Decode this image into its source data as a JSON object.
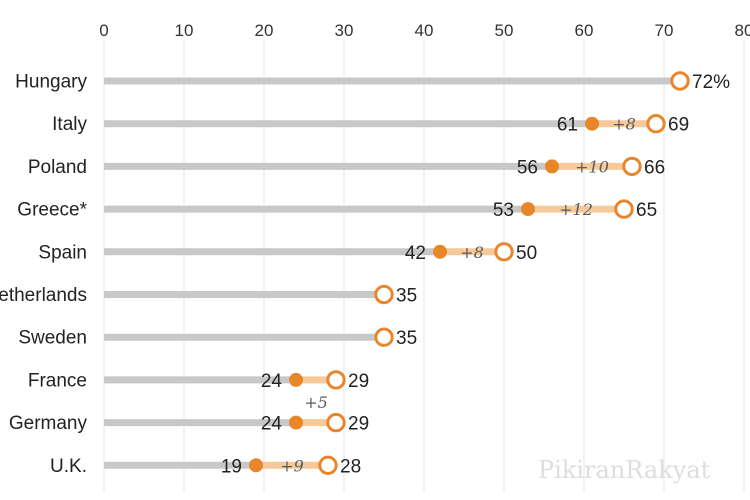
{
  "chart_data": {
    "type": "dot",
    "xlim": [
      0,
      80
    ],
    "ticks": [
      0,
      10,
      20,
      30,
      40,
      50,
      60,
      70,
      80
    ],
    "tick_labels": [
      "0",
      "10",
      "20",
      "30",
      "40",
      "50",
      "60",
      "70",
      "80"
    ],
    "grid": true,
    "categories": [
      "Hungary",
      "Italy",
      "Poland",
      "Greece*",
      "Spain",
      "Netherlands",
      "Sweden",
      "France",
      "Germany",
      "U.K."
    ],
    "earlier": [
      null,
      61,
      56,
      53,
      42,
      null,
      null,
      24,
      24,
      19
    ],
    "latest": [
      72,
      69,
      66,
      65,
      50,
      35,
      35,
      29,
      29,
      28
    ],
    "latest_labels": [
      "72%",
      "69",
      "66",
      "65",
      "50",
      "35",
      "35",
      "29",
      "29",
      "28"
    ],
    "earlier_labels": [
      "",
      "61",
      "56",
      "53",
      "42",
      "",
      "",
      "24",
      "24",
      "19"
    ],
    "change_labels": [
      "",
      "+8",
      "+10",
      "+12",
      "+8",
      "",
      "",
      "+5",
      "",
      "+9"
    ],
    "colors": {
      "track": "#c8c8c8",
      "accent": "#e8862a",
      "band": "#f6c99a",
      "grid": "#e6e6e6"
    }
  },
  "watermark": "PikiranRakyat"
}
